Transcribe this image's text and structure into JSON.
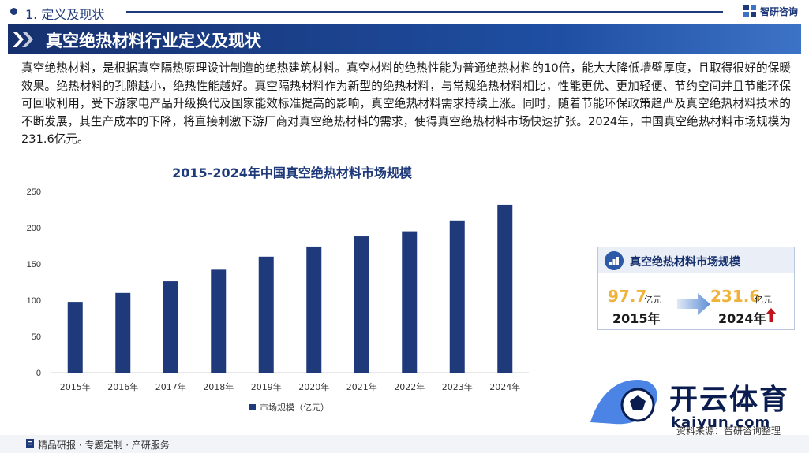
{
  "header": {
    "section_label": "1. 定义及现状",
    "brand_name": "智研咨询"
  },
  "banner": {
    "title": "真空绝热材料行业定义及现状"
  },
  "intro": {
    "text": "真空绝热材料，是根据真空隔热原理设计制造的绝热建筑材料。真空材料的绝热性能为普通绝热材料的10倍，能大大降低墙壁厚度，且取得很好的保暖效果。绝热材料的孔隙越小，绝热性能越好。真空隔热材料作为新型的绝热材料，与常规绝热材料相比，性能更优、更加轻便、节约空间并且节能环保可回收利用，受下游家电产品升级换代及国家能效标准提高的影响，真空绝热材料需求持续上涨。同时，随着节能环保政策趋严及真空绝热材料技术的不断发展，其生产成本的下降，将直接刺激下游厂商对真空绝热材料的需求，使得真空绝热材料市场快速扩张。2024年，中国真空绝热材料市场规模为231.6亿元。"
  },
  "chart_data": {
    "type": "bar",
    "title": "2015-2024年中国真空绝热材料市场规模",
    "categories": [
      "2015年",
      "2016年",
      "2017年",
      "2018年",
      "2019年",
      "2020年",
      "2021年",
      "2022年",
      "2023年",
      "2024年"
    ],
    "series": [
      {
        "name": "市场规模（亿元）",
        "values": [
          97.7,
          110,
          126,
          142,
          160,
          174,
          188,
          195,
          210,
          231.6
        ]
      }
    ],
    "ylim": [
      0,
      250
    ],
    "yticks": [
      0,
      50,
      100,
      150,
      200,
      250
    ],
    "grid": false,
    "legend": "bottom",
    "color": "#1f3a7a"
  },
  "card": {
    "title": "真空绝热材料市场规模",
    "start_value": "97.7",
    "start_unit": "亿元",
    "start_year": "2015年",
    "end_value": "231.6",
    "end_unit": "亿元",
    "end_year": "2024年"
  },
  "footer": {
    "tagline": "精品研报 · 专题定制 · 产研服务",
    "source": "资料来源：智研咨询整理"
  },
  "promo": {
    "name_zh": "开云体育",
    "name_en": "kaiyun.com"
  },
  "colors": {
    "primary": "#1f3a7a",
    "accent": "#f0b33a",
    "up": "#c0141c"
  },
  "icons": {
    "brand": "zhiyan-logo-icon",
    "arrow": "arrow-right-icon",
    "trend": "arrow-up-icon"
  }
}
